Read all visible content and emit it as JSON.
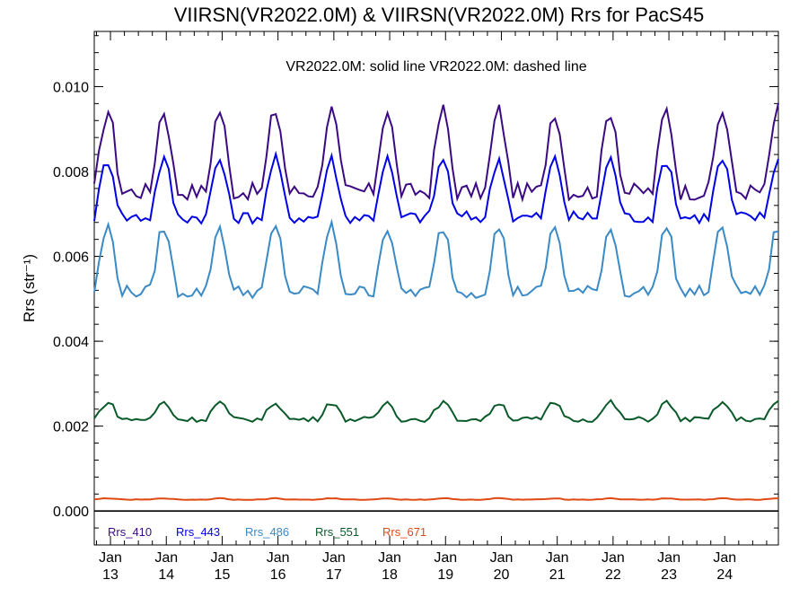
{
  "chart_data": {
    "type": "line",
    "title": "VIIRSN(VR2022.0M) & VIIRSN(VR2022.0M)  Rrs for PacS45",
    "subtitle": "VR2022.0M: solid line   VR2022.0M: dashed line",
    "ylabel": "Rrs (str⁻¹)",
    "xlabel": "",
    "ylim": [
      -0.0008,
      0.0113
    ],
    "xlim": [
      2012.71,
      2024.96
    ],
    "grid": false,
    "legend_placement": "bottom-left",
    "y_ticks": [
      {
        "value": 0.0,
        "label": "0.000"
      },
      {
        "value": 0.002,
        "label": "0.002"
      },
      {
        "value": 0.004,
        "label": "0.004"
      },
      {
        "value": 0.006,
        "label": "0.006"
      },
      {
        "value": 0.008,
        "label": "0.008"
      },
      {
        "value": 0.01,
        "label": "0.010"
      }
    ],
    "x_ticks": [
      {
        "value": 2013,
        "month": "Jan",
        "year": "13"
      },
      {
        "value": 2014,
        "month": "Jan",
        "year": "14"
      },
      {
        "value": 2015,
        "month": "Jan",
        "year": "15"
      },
      {
        "value": 2016,
        "month": "Jan",
        "year": "16"
      },
      {
        "value": 2017,
        "month": "Jan",
        "year": "17"
      },
      {
        "value": 2018,
        "month": "Jan",
        "year": "18"
      },
      {
        "value": 2019,
        "month": "Jan",
        "year": "19"
      },
      {
        "value": 2020,
        "month": "Jan",
        "year": "20"
      },
      {
        "value": 2021,
        "month": "Jan",
        "year": "21"
      },
      {
        "value": 2022,
        "month": "Jan",
        "year": "22"
      },
      {
        "value": 2023,
        "month": "Jan",
        "year": "23"
      },
      {
        "value": 2024,
        "month": "Jan",
        "year": "24"
      }
    ],
    "series": [
      {
        "name": "Rrs_410",
        "color": "#3b0a82",
        "base": 0.0082,
        "amp": 0.0012,
        "phase": 0.95,
        "noise": 0.0004
      },
      {
        "name": "Rrs_443",
        "color": "#0000e6",
        "base": 0.0074,
        "amp": 0.00085,
        "phase": 0.95,
        "noise": 0.0003
      },
      {
        "name": "Rrs_486",
        "color": "#3a8ac6",
        "base": 0.0057,
        "amp": 0.00095,
        "phase": 0.95,
        "noise": 0.0003
      },
      {
        "name": "Rrs_551",
        "color": "#0a5a2a",
        "base": 0.0023,
        "amp": 0.00025,
        "phase": 0.95,
        "noise": 0.00012
      },
      {
        "name": "Rrs_671",
        "color": "#e04a12",
        "base": 0.00028,
        "amp": 2e-05,
        "phase": 0.95,
        "noise": 1.5e-05
      }
    ],
    "baseline_value": 0.0
  }
}
